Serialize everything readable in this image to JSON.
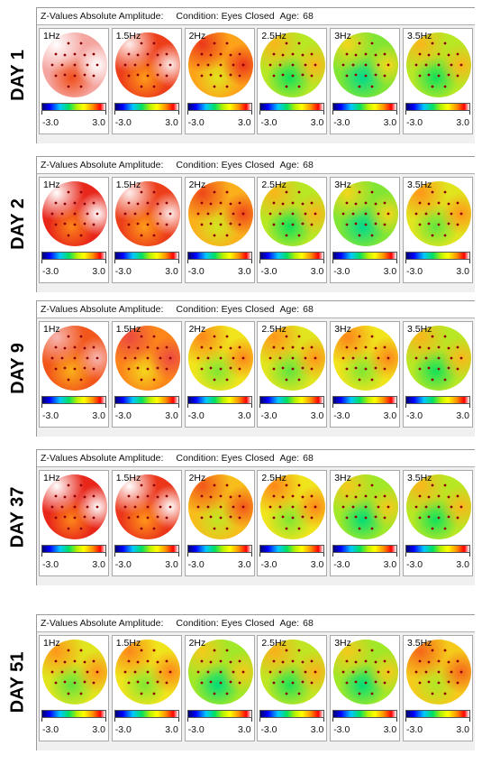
{
  "header": {
    "title": "Z-Values Absolute Amplitude:",
    "condition": "Condition: Eyes Closed",
    "age_label": "Age:",
    "age_value": "68"
  },
  "scale": {
    "min": "-3.0",
    "max": "3.0"
  },
  "frequencies": [
    "1Hz",
    "1.5Hz",
    "2Hz",
    "2.5Hz",
    "3Hz",
    "3.5Hz"
  ],
  "colors": {
    "high": "#e8261a",
    "mid_high": "#ff8c1a",
    "mid": "#f2e21c",
    "low": "#8ee02a",
    "max": "#ffffff"
  },
  "days": [
    {
      "label": "DAY 1",
      "levels": [
        0.95,
        0.85,
        0.72,
        0.55,
        0.5,
        0.55
      ]
    },
    {
      "label": "DAY 2",
      "levels": [
        0.88,
        0.85,
        0.7,
        0.55,
        0.5,
        0.6
      ]
    },
    {
      "label": "DAY 9",
      "levels": [
        0.82,
        0.76,
        0.62,
        0.6,
        0.62,
        0.55
      ]
    },
    {
      "label": "DAY 37",
      "levels": [
        0.88,
        0.86,
        0.68,
        0.62,
        0.52,
        0.55
      ]
    },
    {
      "label": "DAY 51",
      "levels": [
        0.6,
        0.62,
        0.52,
        0.56,
        0.52,
        0.66
      ]
    }
  ]
}
